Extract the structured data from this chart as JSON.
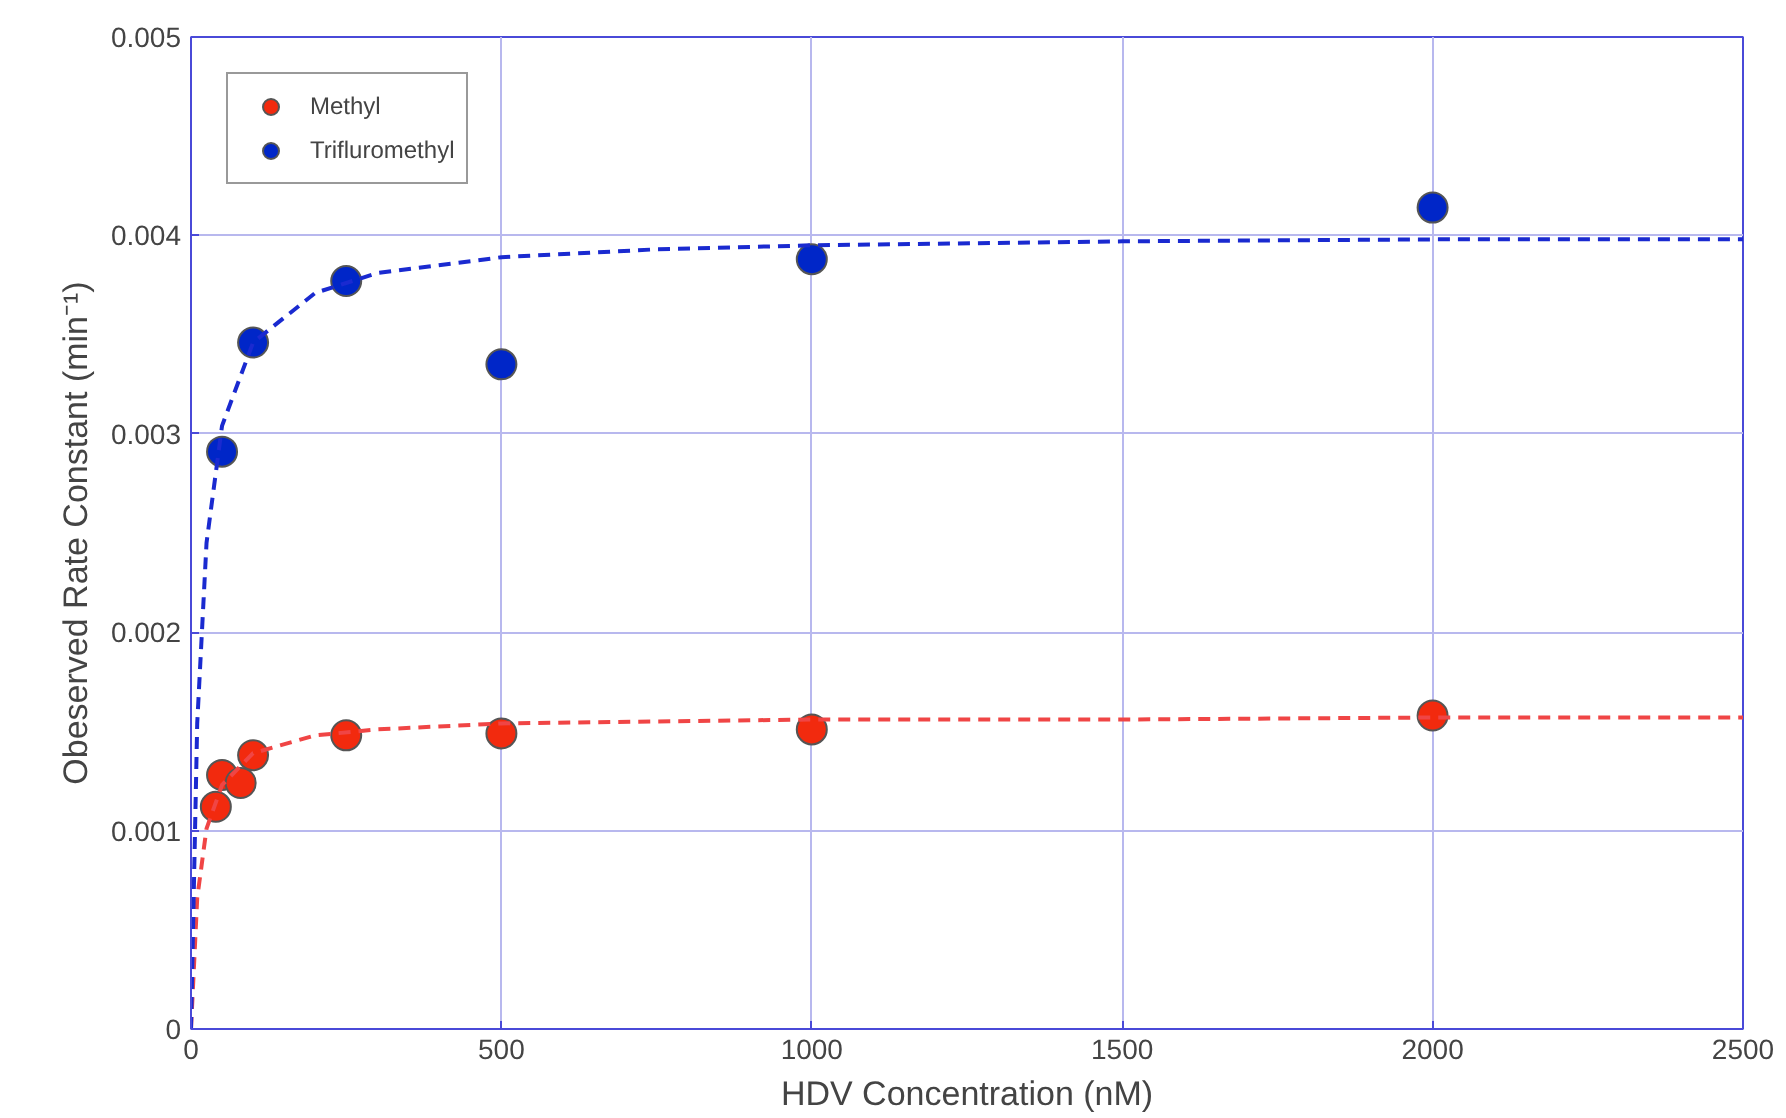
{
  "chart_data": {
    "type": "scatter",
    "xlabel": "HDV Concentration (nM)",
    "ylabel": "Obeserved Rate Constant (min⁻¹)",
    "xlim": [
      0,
      2500
    ],
    "ylim": [
      0,
      0.005
    ],
    "xticks": [
      0,
      500,
      1000,
      1500,
      2000,
      2500
    ],
    "yticks": [
      0,
      0.001,
      0.002,
      0.003,
      0.004,
      0.005
    ],
    "grid": true,
    "legend": "top left",
    "series": [
      {
        "name": "Methyl",
        "marker": "circle",
        "color": "#f22a0e",
        "x": [
          40,
          50,
          80,
          100,
          250,
          500,
          1000,
          2000
        ],
        "values": [
          0.00112,
          0.00128,
          0.00124,
          0.00138,
          0.00148,
          0.00149,
          0.00151,
          0.00158
        ]
      },
      {
        "name": "Trifluromethyl",
        "marker": "circle",
        "color": "#0026c8",
        "x": [
          50,
          100,
          250,
          500,
          1000,
          2000
        ],
        "values": [
          0.00291,
          0.00346,
          0.00377,
          0.00335,
          0.00388,
          0.00414
        ]
      },
      {
        "type": "line",
        "marker": "none",
        "line_style": "dashed",
        "color": "#f04545",
        "x": [
          0,
          10,
          25,
          50,
          100,
          200,
          300,
          500,
          750,
          1000,
          1500,
          2000,
          2500
        ],
        "values": [
          0,
          0.00066,
          0.00101,
          0.00123,
          0.00139,
          0.00148,
          0.00151,
          0.00154,
          0.00155,
          0.00156,
          0.00156,
          0.00157,
          0.00157
        ]
      },
      {
        "type": "line",
        "marker": "none",
        "line_style": "dashed",
        "color": "#1a2ad0",
        "x": [
          0,
          10,
          25,
          50,
          100,
          200,
          300,
          500,
          750,
          1000,
          1500,
          2000,
          2500
        ],
        "values": [
          0,
          0.00154,
          0.00245,
          0.00304,
          0.00346,
          0.00371,
          0.00381,
          0.00389,
          0.00393,
          0.00395,
          0.00397,
          0.00398,
          0.00398
        ]
      }
    ]
  }
}
